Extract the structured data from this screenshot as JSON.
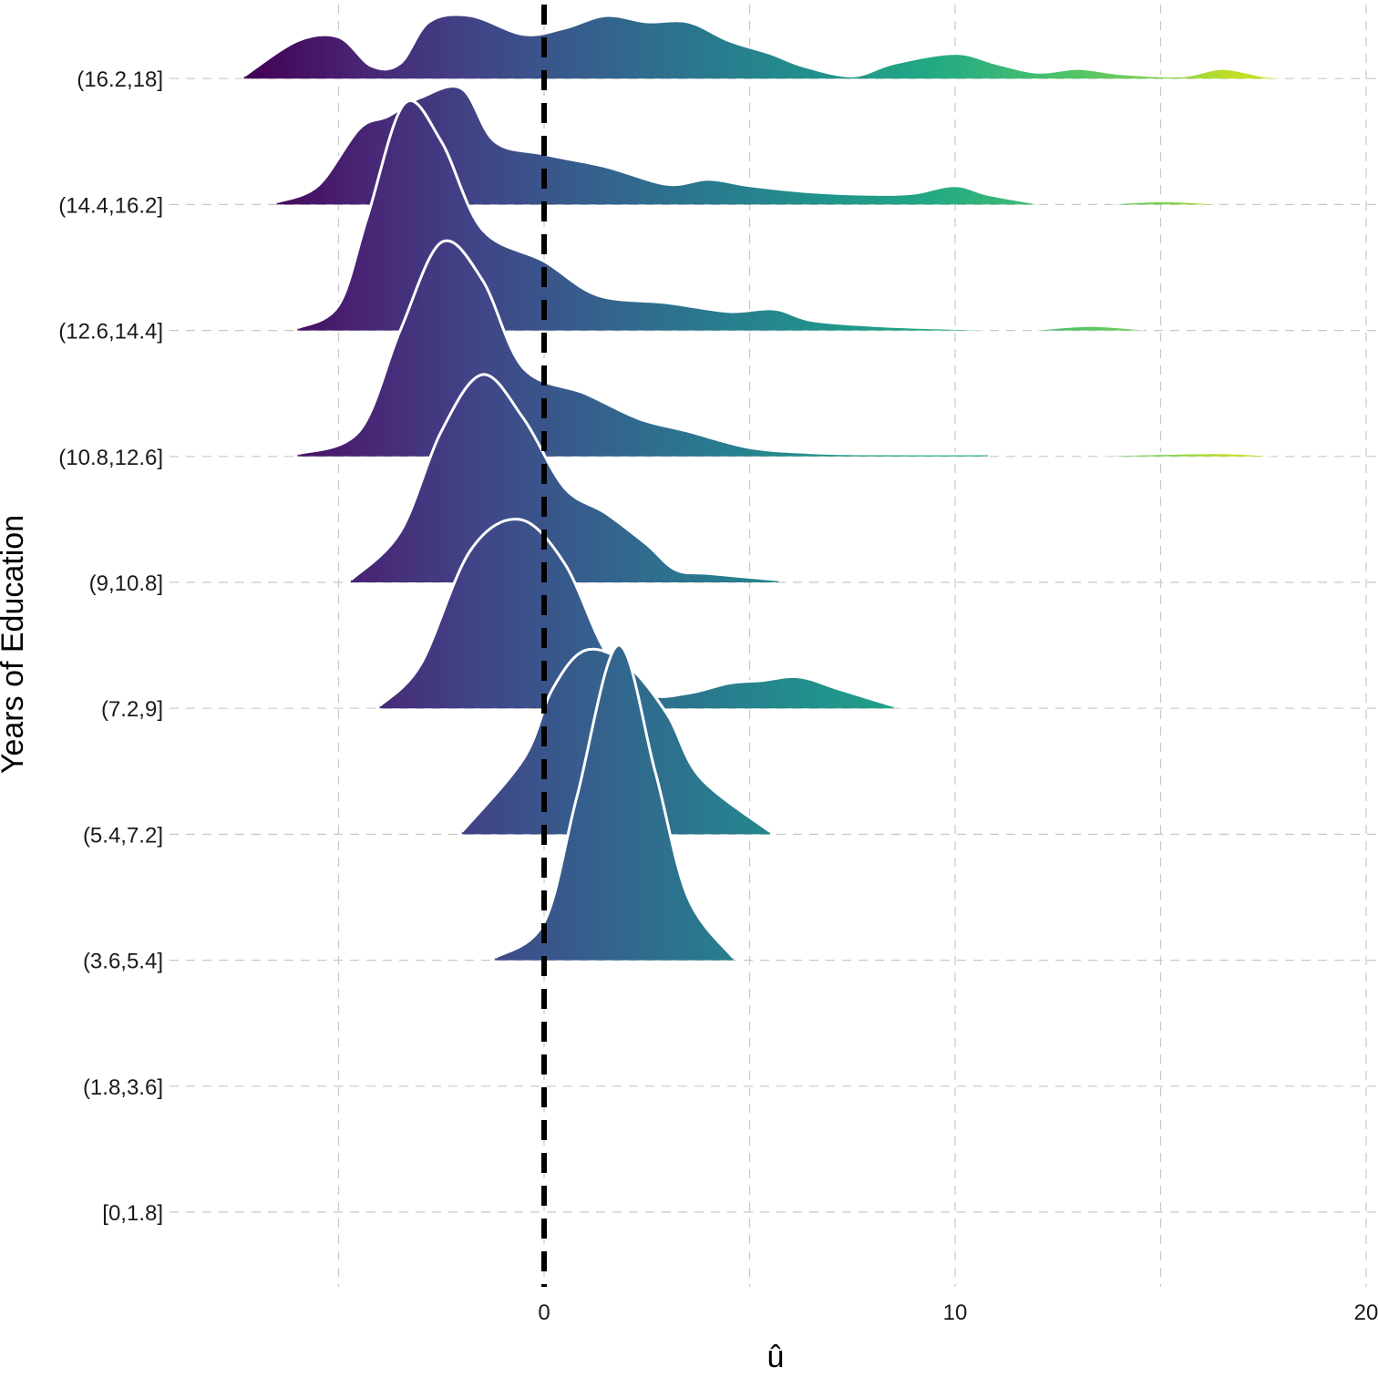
{
  "chart_data": {
    "type": "ridgeline",
    "title": "",
    "xlabel": "û",
    "ylabel": "Years of Education",
    "xlim": [
      -9.5,
      20
    ],
    "x_ticks": [
      0,
      10,
      20
    ],
    "x_tick_labels": [
      "0",
      "10",
      "20"
    ],
    "minor_gridlines_x": [
      -5,
      5,
      15
    ],
    "grid": true,
    "reference_line": {
      "x": 0,
      "style": "dashed",
      "color": "#000000"
    },
    "colormap": "viridis",
    "categories": [
      "[0,1.8]",
      "(1.8,3.6]",
      "(3.6,5.4]",
      "(5.4,7.2]",
      "(7.2,9]",
      "(9,10.8]",
      "(10.8,12.6]",
      "(12.6,14.4]",
      "(14.4,16.2]",
      "(16.2,18]"
    ],
    "series": [
      {
        "category": "(3.6,5.4]",
        "segments": [
          [
            [
              -1.2,
              0.02
            ],
            [
              0,
              0.3
            ],
            [
              0.8,
              1.3
            ],
            [
              1.8,
              2.5
            ],
            [
              2.7,
              1.5
            ],
            [
              3.5,
              0.5
            ],
            [
              4.6,
              0.02
            ]
          ]
        ]
      },
      {
        "category": "(5.4,7.2]",
        "segments": [
          [
            [
              -2.0,
              0.02
            ],
            [
              -0.5,
              0.6
            ],
            [
              0.2,
              1.15
            ],
            [
              1.0,
              1.46
            ],
            [
              2.0,
              1.35
            ],
            [
              3.0,
              0.95
            ],
            [
              3.8,
              0.45
            ],
            [
              5.5,
              0.02
            ]
          ]
        ]
      },
      {
        "category": "(7.2,9]",
        "segments": [
          [
            [
              -4.0,
              0.02
            ],
            [
              -3.0,
              0.35
            ],
            [
              -1.8,
              1.25
            ],
            [
              -0.6,
              1.5
            ],
            [
              0.5,
              1.15
            ],
            [
              1.5,
              0.45
            ],
            [
              2.5,
              0.12
            ],
            [
              3.5,
              0.12
            ],
            [
              4.5,
              0.2
            ],
            [
              5.3,
              0.22
            ],
            [
              6.2,
              0.25
            ],
            [
              7.2,
              0.15
            ],
            [
              8.5,
              0.02
            ]
          ]
        ]
      },
      {
        "category": "(9,10.8]",
        "segments": [
          [
            [
              -4.7,
              0.02
            ],
            [
              -3.5,
              0.4
            ],
            [
              -2.5,
              1.2
            ],
            [
              -1.5,
              1.65
            ],
            [
              -0.5,
              1.3
            ],
            [
              0.5,
              0.75
            ],
            [
              1.5,
              0.55
            ],
            [
              2.5,
              0.3
            ],
            [
              3.2,
              0.1
            ],
            [
              4.0,
              0.07
            ],
            [
              5.7,
              0.02
            ]
          ]
        ]
      },
      {
        "category": "(10.8,12.6]",
        "segments": [
          [
            [
              -6.0,
              0.02
            ],
            [
              -4.5,
              0.2
            ],
            [
              -3.5,
              1.0
            ],
            [
              -2.5,
              1.7
            ],
            [
              -1.5,
              1.4
            ],
            [
              -0.5,
              0.7
            ],
            [
              1.0,
              0.5
            ],
            [
              2.3,
              0.3
            ],
            [
              3.5,
              0.2
            ],
            [
              5.0,
              0.07
            ],
            [
              6.5,
              0.03
            ],
            [
              8.0,
              0.02
            ],
            [
              10.8,
              0.02
            ]
          ],
          [
            [
              13.5,
              0.01
            ],
            [
              16.3,
              0.03
            ],
            [
              17.7,
              0.01
            ]
          ]
        ]
      },
      {
        "category": "(12.6,14.4]",
        "segments": [
          [
            [
              -6.0,
              0.02
            ],
            [
              -5.0,
              0.2
            ],
            [
              -4.3,
              0.9
            ],
            [
              -3.4,
              1.8
            ],
            [
              -2.5,
              1.5
            ],
            [
              -1.5,
              0.8
            ],
            [
              0,
              0.55
            ],
            [
              1.3,
              0.28
            ],
            [
              3.0,
              0.22
            ],
            [
              4.5,
              0.15
            ],
            [
              5.6,
              0.17
            ],
            [
              6.5,
              0.08
            ],
            [
              8.0,
              0.04
            ],
            [
              9.5,
              0.02
            ],
            [
              10.7,
              0.01
            ]
          ],
          [
            [
              12.0,
              0.01
            ],
            [
              13.3,
              0.04
            ],
            [
              14.6,
              0.01
            ]
          ]
        ]
      },
      {
        "category": "(14.4,16.2]",
        "segments": [
          [
            [
              -6.5,
              0.02
            ],
            [
              -5.5,
              0.15
            ],
            [
              -4.5,
              0.6
            ],
            [
              -3.8,
              0.7
            ],
            [
              -3.0,
              0.85
            ],
            [
              -2.0,
              0.92
            ],
            [
              -1.2,
              0.5
            ],
            [
              0,
              0.4
            ],
            [
              1.5,
              0.3
            ],
            [
              3.0,
              0.16
            ],
            [
              4.0,
              0.2
            ],
            [
              5.0,
              0.15
            ],
            [
              6.5,
              0.1
            ],
            [
              8.0,
              0.08
            ],
            [
              9.0,
              0.09
            ],
            [
              10.0,
              0.15
            ],
            [
              10.8,
              0.08
            ],
            [
              12.0,
              0.01
            ]
          ],
          [
            [
              13.8,
              0.01
            ],
            [
              15.0,
              0.03
            ],
            [
              16.4,
              0.01
            ]
          ]
        ]
      },
      {
        "category": "(16.2,18]",
        "segments": [
          [
            [
              -7.3,
              0.02
            ],
            [
              -6.0,
              0.3
            ],
            [
              -5.0,
              0.33
            ],
            [
              -4.2,
              0.1
            ],
            [
              -3.5,
              0.12
            ],
            [
              -2.8,
              0.45
            ],
            [
              -1.8,
              0.5
            ],
            [
              -0.5,
              0.35
            ],
            [
              0.5,
              0.4
            ],
            [
              1.5,
              0.5
            ],
            [
              2.5,
              0.45
            ],
            [
              3.5,
              0.45
            ],
            [
              4.5,
              0.3
            ],
            [
              5.5,
              0.2
            ],
            [
              6.3,
              0.1
            ],
            [
              7.5,
              0.02
            ],
            [
              8.5,
              0.12
            ],
            [
              10.0,
              0.2
            ],
            [
              11.0,
              0.12
            ],
            [
              12.0,
              0.05
            ],
            [
              13.0,
              0.08
            ],
            [
              14.0,
              0.04
            ],
            [
              15.5,
              0.02
            ],
            [
              16.5,
              0.08
            ],
            [
              17.5,
              0.02
            ],
            [
              18.0,
              0.01
            ]
          ]
        ]
      }
    ]
  }
}
